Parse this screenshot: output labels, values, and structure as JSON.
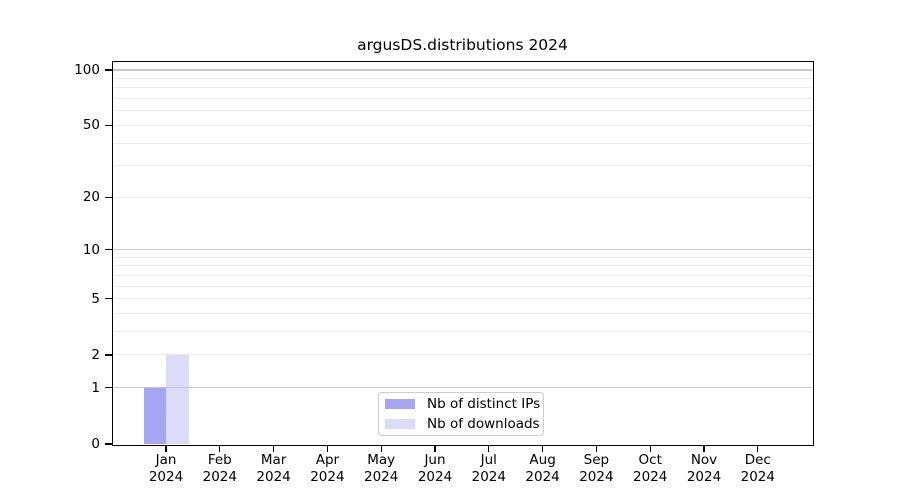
{
  "title": "argusDS.distributions 2024",
  "chart_data": {
    "type": "bar",
    "title": "argusDS.distributions 2024",
    "categories": [
      "Jan",
      "Feb",
      "Mar",
      "Apr",
      "May",
      "Jun",
      "Jul",
      "Aug",
      "Sep",
      "Oct",
      "Nov",
      "Dec"
    ],
    "year": "2024",
    "series": [
      {
        "name": "Nb of distinct IPs",
        "color": "#a6a6f2",
        "values": [
          1,
          0,
          0,
          0,
          0,
          0,
          0,
          0,
          0,
          0,
          0,
          0
        ]
      },
      {
        "name": "Nb of downloads",
        "color": "#dcdcf8",
        "values": [
          2,
          0,
          0,
          0,
          0,
          0,
          0,
          0,
          0,
          0,
          0,
          0
        ]
      }
    ],
    "yscale": "log1p",
    "ylim": [
      0,
      110.5
    ],
    "ytick_labels": [
      0,
      1,
      2,
      5,
      10,
      20,
      50,
      100
    ],
    "major_gridlines": [
      1,
      10,
      100
    ],
    "minor_gridlines": [
      2,
      3,
      4,
      5,
      6,
      7,
      8,
      9,
      20,
      30,
      40,
      50,
      60,
      70,
      80,
      90
    ],
    "legend_position": "lower center",
    "grid": "on"
  },
  "colors": {
    "major_grid": "#c8c8c8",
    "minor_grid": "#ebebeb",
    "spine": "#000000",
    "text": "#000000",
    "background": "#ffffff"
  }
}
